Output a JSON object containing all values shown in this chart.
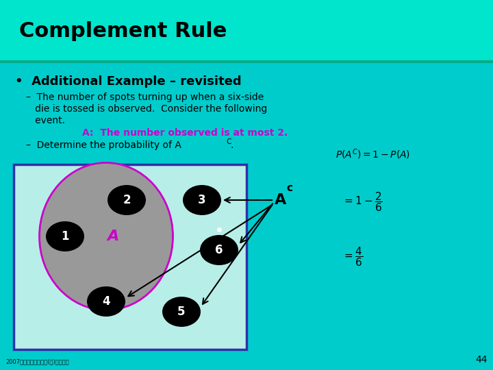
{
  "title": "Complement Rule",
  "title_bg": "#00E5CC",
  "slide_bg": "#00CCCC",
  "sep_color": "#00AA88",
  "title_color": "#000000",
  "title_fontsize": 22,
  "bullet1": "Additional Example – revisited",
  "bullet2_line1": "–  The number of spots turning up when a six-side",
  "bullet2_line2": "   die is tossed is observed.  Consider the following",
  "bullet2_line3": "   event.",
  "bullet3_color": "#CC00CC",
  "bullet3": "A:  The number observed is at most 2.",
  "bullet4": "–  Determine the probability of A",
  "footer": "2007年塔大统计学概论(一)课程课件",
  "page_num": "44",
  "box_facecolor": "#B8EEE8",
  "box_edgecolor": "#3030AA",
  "circle_facecolor": "#999999",
  "circle_edgecolor": "#CC00CC",
  "node_facecolor": "#000000",
  "node_textcolor": "#FFFFFF",
  "Ac_textcolor": "#000000"
}
